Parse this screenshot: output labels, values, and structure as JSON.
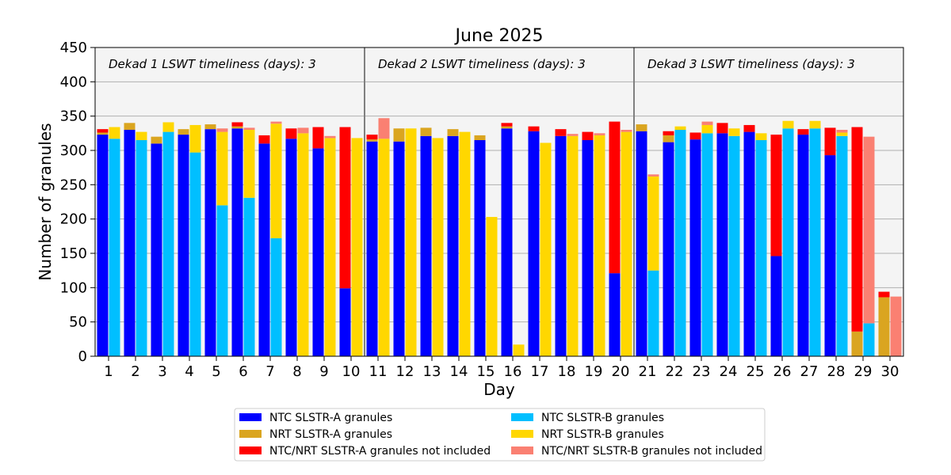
{
  "chart_data": {
    "type": "bar",
    "title": "June 2025",
    "xlabel": "Day",
    "ylabel": "Number of granules",
    "ylim": [
      0,
      450
    ],
    "yticks": [
      0,
      50,
      100,
      150,
      200,
      250,
      300,
      350,
      400,
      450
    ],
    "grid": true,
    "legend_position": "bottom",
    "categories": [
      "1",
      "2",
      "3",
      "4",
      "5",
      "6",
      "7",
      "8",
      "9",
      "10",
      "11",
      "12",
      "13",
      "14",
      "15",
      "16",
      "17",
      "18",
      "19",
      "20",
      "21",
      "22",
      "23",
      "24",
      "25",
      "26",
      "27",
      "28",
      "29",
      "30"
    ],
    "dekads": [
      {
        "label": "Dekad 1 LSWT timeliness (days): 3",
        "start_day": 1,
        "end_day": 10
      },
      {
        "label": "Dekad 2 LSWT timeliness (days): 3",
        "start_day": 11,
        "end_day": 20
      },
      {
        "label": "Dekad 3 LSWT timeliness (days): 3",
        "start_day": 21,
        "end_day": 30
      }
    ],
    "colors": {
      "ntc_a": "#0000ff",
      "nrt_a": "#daa520",
      "not_a": "#ff0000",
      "ntc_b": "#00bfff",
      "nrt_b": "#ffd700",
      "not_b": "#fa8072"
    },
    "series": [
      {
        "key": "ntc_a",
        "name": "NTC SLSTR-A granules",
        "sensor": "A",
        "values": [
          323,
          330,
          310,
          323,
          331,
          332,
          310,
          317,
          303,
          99,
          313,
          313,
          321,
          321,
          315,
          332,
          328,
          321,
          315,
          121,
          328,
          312,
          316,
          325,
          327,
          146,
          323,
          293,
          0,
          0
        ]
      },
      {
        "key": "nrt_a",
        "name": "NRT SLSTR-A granules",
        "sensor": "A",
        "values": [
          3,
          10,
          10,
          8,
          7,
          3,
          0,
          0,
          0,
          0,
          3,
          19,
          12,
          10,
          7,
          3,
          0,
          0,
          0,
          0,
          10,
          10,
          0,
          0,
          0,
          0,
          0,
          0,
          36,
          86
        ]
      },
      {
        "key": "not_a",
        "name": "NTC/NRT SLSTR-A granules not included",
        "sensor": "A",
        "values": [
          5,
          0,
          0,
          0,
          0,
          6,
          12,
          15,
          31,
          235,
          7,
          0,
          0,
          0,
          0,
          5,
          7,
          10,
          12,
          221,
          0,
          6,
          10,
          15,
          10,
          177,
          8,
          40,
          298,
          8
        ]
      },
      {
        "key": "ntc_b",
        "name": "NTC SLSTR-B granules",
        "sensor": "B",
        "values": [
          317,
          315,
          327,
          297,
          220,
          231,
          172,
          0,
          0,
          0,
          0,
          0,
          0,
          0,
          0,
          0,
          0,
          0,
          0,
          0,
          125,
          330,
          325,
          321,
          315,
          332,
          332,
          321,
          48,
          0
        ]
      },
      {
        "key": "nrt_b",
        "name": "NRT SLSTR-B granules",
        "sensor": "B",
        "values": [
          17,
          12,
          14,
          40,
          107,
          99,
          167,
          325,
          318,
          318,
          317,
          332,
          318,
          327,
          203,
          17,
          311,
          321,
          322,
          327,
          137,
          5,
          12,
          11,
          10,
          11,
          11,
          5,
          0,
          0
        ]
      },
      {
        "key": "not_b",
        "name": "NTC/NRT SLSTR-B granules not included",
        "sensor": "B",
        "values": [
          0,
          0,
          0,
          0,
          5,
          3,
          3,
          8,
          3,
          0,
          30,
          0,
          0,
          0,
          0,
          0,
          0,
          3,
          3,
          3,
          3,
          0,
          5,
          0,
          0,
          0,
          0,
          4,
          272,
          87
        ]
      }
    ],
    "legend_order": [
      "ntc_a",
      "ntc_b",
      "nrt_a",
      "nrt_b",
      "not_a",
      "not_b"
    ]
  }
}
